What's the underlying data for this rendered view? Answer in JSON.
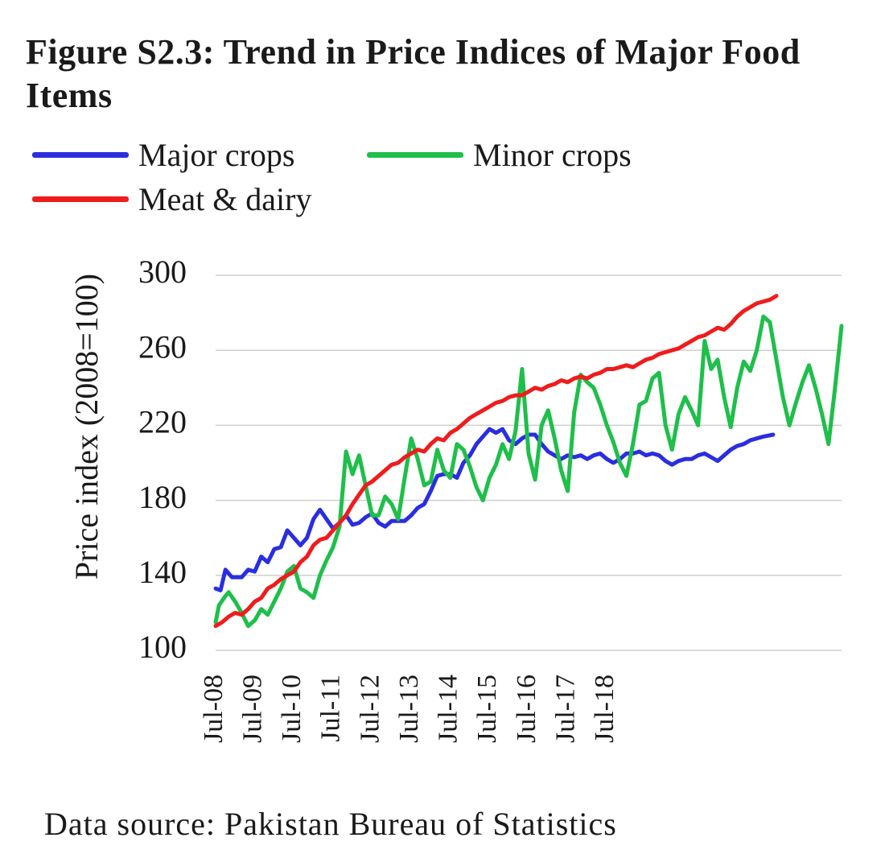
{
  "chart_data": {
    "type": "line",
    "title": "Figure S2.3: Trend in Price Indices of Major Food Items",
    "xlabel": "",
    "ylabel": "Price index (2008=100)",
    "ylim": [
      100,
      300
    ],
    "yticks": [
      100,
      140,
      180,
      220,
      260,
      300
    ],
    "grid": true,
    "legend_position": "top-left",
    "x_tick_labels": [
      "Jul-08",
      "Jul-09",
      "Jul-10",
      "Jul-11",
      "Jul-12",
      "Jul-13",
      "Jul-14",
      "Jul-15",
      "Jul-16",
      "Jul-17",
      "Jul-18"
    ],
    "x_start": "Jul-08",
    "x_end": "Jun-19",
    "series": [
      {
        "name": "Major crops",
        "color": "#2a2ee0",
        "values": [
          [
            0,
            133
          ],
          [
            1.5,
            132
          ],
          [
            3,
            143
          ],
          [
            5,
            139
          ],
          [
            8,
            139
          ],
          [
            10,
            143
          ],
          [
            12,
            142
          ],
          [
            14,
            150
          ],
          [
            16,
            147
          ],
          [
            18,
            154
          ],
          [
            20,
            155
          ],
          [
            22,
            164
          ],
          [
            24,
            160
          ],
          [
            26,
            156
          ],
          [
            28,
            160
          ],
          [
            30,
            170
          ],
          [
            32,
            175
          ],
          [
            34,
            170
          ],
          [
            36,
            165
          ],
          [
            38,
            168
          ],
          [
            40,
            172
          ],
          [
            42,
            167
          ],
          [
            44,
            168
          ],
          [
            46,
            171
          ],
          [
            48,
            173
          ],
          [
            50,
            168
          ],
          [
            52,
            166
          ],
          [
            54,
            169
          ],
          [
            56,
            169
          ],
          [
            58,
            169
          ],
          [
            60,
            172
          ],
          [
            62,
            176
          ],
          [
            64,
            178
          ],
          [
            66,
            185
          ],
          [
            68,
            193
          ],
          [
            70,
            194
          ],
          [
            72,
            194
          ],
          [
            74,
            192
          ],
          [
            76,
            200
          ],
          [
            78,
            204
          ],
          [
            80,
            210
          ],
          [
            82,
            214
          ],
          [
            84,
            218
          ],
          [
            86,
            216
          ],
          [
            88,
            218
          ],
          [
            90,
            212
          ],
          [
            92,
            210
          ],
          [
            94,
            213
          ],
          [
            96,
            215
          ],
          [
            98,
            215
          ],
          [
            100,
            210
          ],
          [
            102,
            206
          ],
          [
            104,
            204
          ],
          [
            106,
            202
          ],
          [
            108,
            204
          ],
          [
            110,
            203
          ],
          [
            112,
            204
          ],
          [
            114,
            202
          ],
          [
            116,
            204
          ],
          [
            118,
            205
          ],
          [
            120,
            202
          ],
          [
            122,
            200
          ],
          [
            124,
            202
          ],
          [
            126,
            205
          ],
          [
            128,
            205
          ],
          [
            130,
            206
          ],
          [
            132,
            204
          ],
          [
            134,
            205
          ],
          [
            136,
            204
          ],
          [
            138,
            201
          ],
          [
            140,
            199
          ],
          [
            142,
            201
          ],
          [
            144,
            202
          ],
          [
            146,
            202
          ],
          [
            148,
            204
          ],
          [
            150,
            205
          ],
          [
            152,
            203
          ],
          [
            154,
            201
          ],
          [
            156,
            204
          ],
          [
            158,
            207
          ],
          [
            160,
            209
          ],
          [
            162,
            210
          ],
          [
            164,
            212
          ],
          [
            166,
            213
          ],
          [
            168,
            214
          ],
          [
            171,
            215
          ]
        ]
      },
      {
        "name": "Minor crops",
        "color": "#1ebf4a",
        "values": [
          [
            0,
            115
          ],
          [
            1,
            124
          ],
          [
            3,
            129
          ],
          [
            4,
            131
          ],
          [
            6,
            126
          ],
          [
            8,
            120
          ],
          [
            10,
            113
          ],
          [
            12,
            116
          ],
          [
            14,
            122
          ],
          [
            16,
            119
          ],
          [
            18,
            126
          ],
          [
            20,
            133
          ],
          [
            22,
            142
          ],
          [
            24,
            145
          ],
          [
            26,
            133
          ],
          [
            28,
            131
          ],
          [
            30,
            128
          ],
          [
            32,
            140
          ],
          [
            34,
            148
          ],
          [
            36,
            155
          ],
          [
            38,
            166
          ],
          [
            40,
            206
          ],
          [
            42,
            194
          ],
          [
            44,
            204
          ],
          [
            46,
            188
          ],
          [
            48,
            172
          ],
          [
            50,
            172
          ],
          [
            52,
            182
          ],
          [
            54,
            178
          ],
          [
            56,
            170
          ],
          [
            58,
            192
          ],
          [
            60,
            213
          ],
          [
            62,
            202
          ],
          [
            64,
            188
          ],
          [
            66,
            190
          ],
          [
            68,
            207
          ],
          [
            70,
            196
          ],
          [
            72,
            192
          ],
          [
            74,
            210
          ],
          [
            76,
            207
          ],
          [
            78,
            198
          ],
          [
            80,
            187
          ],
          [
            82,
            180
          ],
          [
            84,
            192
          ],
          [
            86,
            199
          ],
          [
            88,
            210
          ],
          [
            90,
            202
          ],
          [
            92,
            217
          ],
          [
            94,
            250
          ],
          [
            96,
            205
          ],
          [
            98,
            191
          ],
          [
            100,
            220
          ],
          [
            102,
            228
          ],
          [
            104,
            213
          ],
          [
            106,
            196
          ],
          [
            108,
            185
          ],
          [
            110,
            227
          ],
          [
            112,
            247
          ],
          [
            114,
            243
          ],
          [
            116,
            240
          ],
          [
            118,
            231
          ],
          [
            120,
            220
          ],
          [
            122,
            211
          ],
          [
            124,
            200
          ],
          [
            126,
            193
          ],
          [
            128,
            210
          ],
          [
            130,
            231
          ],
          [
            132,
            233
          ],
          [
            134,
            245
          ],
          [
            136,
            248
          ],
          [
            138,
            220
          ],
          [
            140,
            207
          ],
          [
            142,
            226
          ],
          [
            144,
            235
          ],
          [
            146,
            228
          ],
          [
            148,
            220
          ],
          [
            150,
            265
          ],
          [
            152,
            250
          ],
          [
            154,
            255
          ],
          [
            156,
            235
          ],
          [
            158,
            219
          ],
          [
            160,
            240
          ],
          [
            162,
            254
          ],
          [
            164,
            249
          ],
          [
            166,
            260
          ],
          [
            168,
            278
          ],
          [
            170,
            275
          ],
          [
            172,
            255
          ],
          [
            174,
            235
          ],
          [
            176,
            220
          ],
          [
            178,
            232
          ],
          [
            180,
            243
          ],
          [
            182,
            252
          ],
          [
            184,
            240
          ],
          [
            186,
            226
          ],
          [
            188,
            210
          ],
          [
            190,
            240
          ],
          [
            192,
            273
          ]
        ]
      },
      {
        "name": "Meat & dairy",
        "color": "#ef1c1c",
        "values": [
          [
            0,
            113
          ],
          [
            2,
            115
          ],
          [
            4,
            118
          ],
          [
            6,
            120
          ],
          [
            8,
            119
          ],
          [
            10,
            122
          ],
          [
            12,
            126
          ],
          [
            14,
            128
          ],
          [
            16,
            133
          ],
          [
            18,
            135
          ],
          [
            20,
            138
          ],
          [
            22,
            140
          ],
          [
            24,
            142
          ],
          [
            26,
            147
          ],
          [
            28,
            150
          ],
          [
            30,
            156
          ],
          [
            32,
            159
          ],
          [
            34,
            160
          ],
          [
            36,
            164
          ],
          [
            38,
            168
          ],
          [
            40,
            172
          ],
          [
            42,
            178
          ],
          [
            44,
            183
          ],
          [
            46,
            188
          ],
          [
            48,
            190
          ],
          [
            50,
            193
          ],
          [
            52,
            196
          ],
          [
            54,
            199
          ],
          [
            56,
            200
          ],
          [
            58,
            203
          ],
          [
            60,
            205
          ],
          [
            62,
            207
          ],
          [
            64,
            206
          ],
          [
            66,
            210
          ],
          [
            68,
            213
          ],
          [
            70,
            212
          ],
          [
            72,
            216
          ],
          [
            74,
            218
          ],
          [
            76,
            221
          ],
          [
            78,
            224
          ],
          [
            80,
            226
          ],
          [
            82,
            228
          ],
          [
            84,
            230
          ],
          [
            86,
            232
          ],
          [
            88,
            233
          ],
          [
            90,
            235
          ],
          [
            92,
            236
          ],
          [
            94,
            236
          ],
          [
            96,
            238
          ],
          [
            98,
            240
          ],
          [
            100,
            239
          ],
          [
            102,
            241
          ],
          [
            104,
            242
          ],
          [
            106,
            244
          ],
          [
            108,
            243
          ],
          [
            110,
            245
          ],
          [
            112,
            246
          ],
          [
            114,
            245
          ],
          [
            116,
            247
          ],
          [
            118,
            248
          ],
          [
            120,
            250
          ],
          [
            122,
            250
          ],
          [
            124,
            251
          ],
          [
            126,
            252
          ],
          [
            128,
            251
          ],
          [
            130,
            253
          ],
          [
            132,
            255
          ],
          [
            134,
            256
          ],
          [
            136,
            258
          ],
          [
            138,
            259
          ],
          [
            140,
            260
          ],
          [
            142,
            261
          ],
          [
            144,
            263
          ],
          [
            146,
            265
          ],
          [
            148,
            267
          ],
          [
            150,
            268
          ],
          [
            152,
            270
          ],
          [
            154,
            272
          ],
          [
            156,
            271
          ],
          [
            158,
            274
          ],
          [
            160,
            278
          ],
          [
            162,
            281
          ],
          [
            164,
            283
          ],
          [
            166,
            285
          ],
          [
            168,
            286
          ],
          [
            170,
            287
          ],
          [
            172,
            289
          ]
        ]
      }
    ]
  },
  "footer": {
    "source": "Data source: Pakistan Bureau of Statistics"
  }
}
